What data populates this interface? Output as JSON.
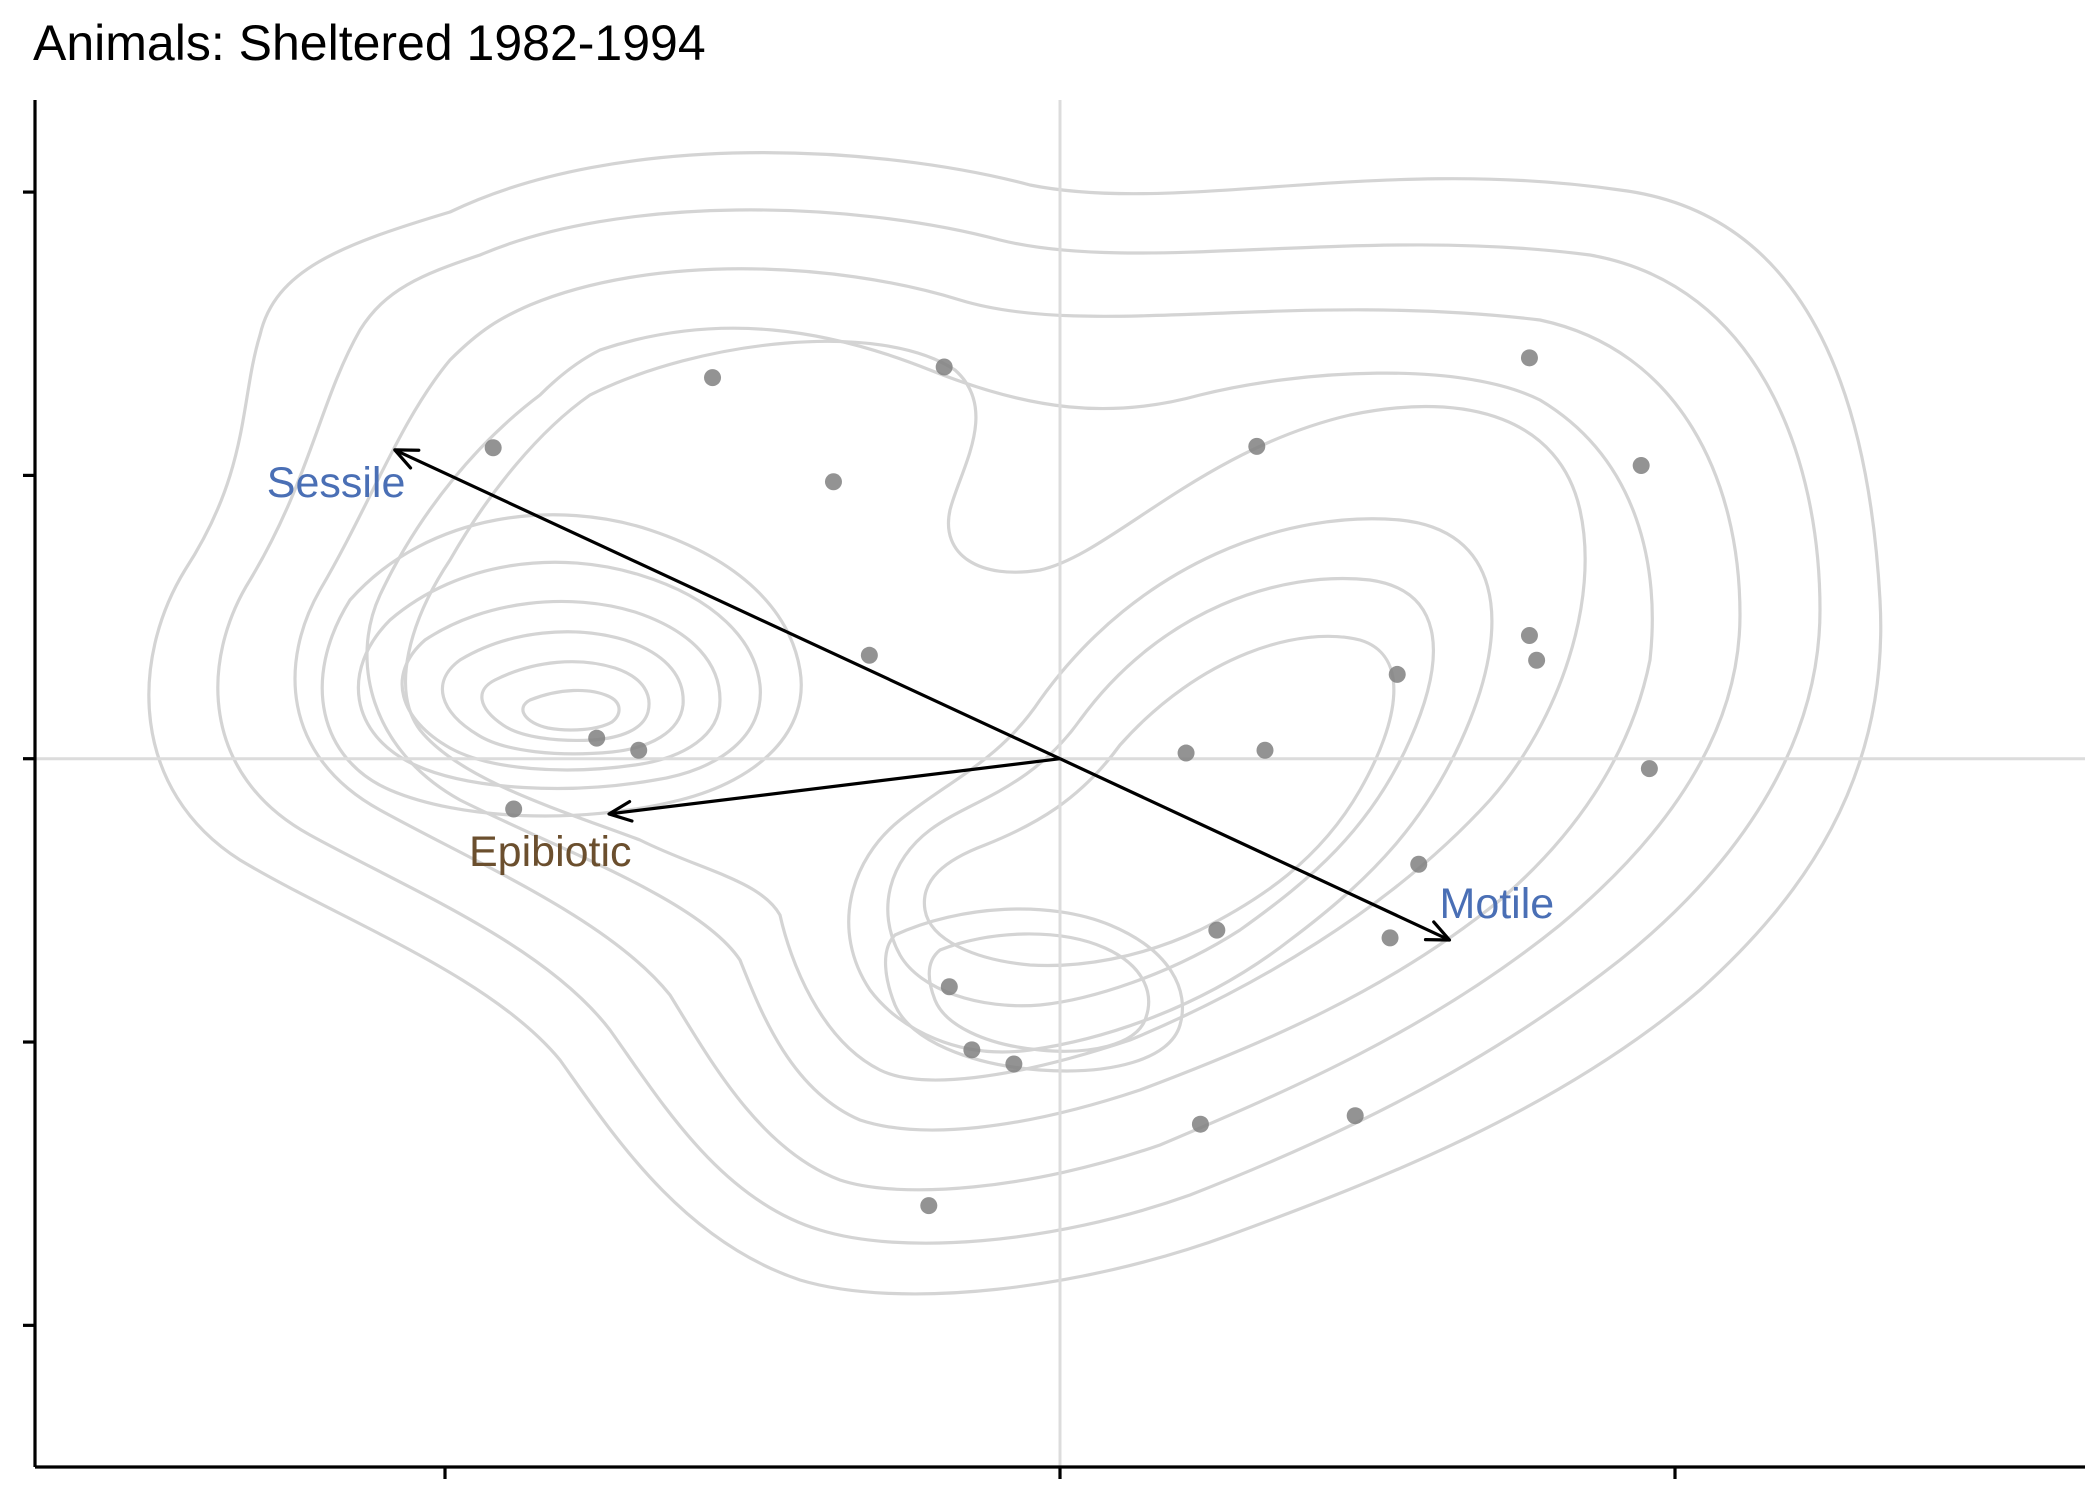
{
  "chart_data": {
    "type": "scatter",
    "title": "Animals: Sheltered 1982-1994",
    "xlabel": "",
    "ylabel": "",
    "xlim": [
      -1.0,
      1.0
    ],
    "ylim": [
      -1.0,
      0.93
    ],
    "x_ticks": [
      -0.6,
      0.0,
      0.6
    ],
    "y_ticks": [
      -0.8,
      -0.4,
      0.0,
      0.4,
      0.8
    ],
    "tick_labels_shown": false,
    "reference_lines": {
      "x": 0,
      "y": 0
    },
    "density_contours": true,
    "grid": false,
    "colors": {
      "points": "#808080",
      "contours": "#d4d4d4",
      "reference_lines": "#dcdcdc",
      "vectors": "#000000",
      "label_blue": "#4a6fb5",
      "label_brown": "#6b4f2e"
    },
    "points": [
      {
        "x": -0.553,
        "y": 0.439
      },
      {
        "x": -0.339,
        "y": 0.538
      },
      {
        "x": -0.113,
        "y": 0.553
      },
      {
        "x": -0.221,
        "y": 0.391
      },
      {
        "x": -0.186,
        "y": 0.146
      },
      {
        "x": -0.452,
        "y": 0.029
      },
      {
        "x": -0.411,
        "y": 0.012
      },
      {
        "x": -0.533,
        "y": -0.071
      },
      {
        "x": 0.192,
        "y": 0.441
      },
      {
        "x": 0.458,
        "y": 0.566
      },
      {
        "x": 0.567,
        "y": 0.414
      },
      {
        "x": 0.458,
        "y": 0.174
      },
      {
        "x": 0.465,
        "y": 0.139
      },
      {
        "x": 0.329,
        "y": 0.119
      },
      {
        "x": 0.123,
        "y": 0.008
      },
      {
        "x": 0.2,
        "y": 0.012
      },
      {
        "x": 0.575,
        "y": -0.014
      },
      {
        "x": 0.35,
        "y": -0.149
      },
      {
        "x": 0.153,
        "y": -0.242
      },
      {
        "x": 0.322,
        "y": -0.253
      },
      {
        "x": -0.108,
        "y": -0.322
      },
      {
        "x": -0.086,
        "y": -0.411
      },
      {
        "x": -0.045,
        "y": -0.431
      },
      {
        "x": 0.137,
        "y": -0.516
      },
      {
        "x": 0.288,
        "y": -0.504
      },
      {
        "x": -0.128,
        "y": -0.631
      }
    ],
    "vectors": [
      {
        "name": "Sessile",
        "x": -0.649,
        "y": 0.436,
        "color": "#4a6fb5"
      },
      {
        "name": "Motile",
        "x": 0.38,
        "y": -0.256,
        "color": "#4a6fb5"
      },
      {
        "name": "Epibiotic",
        "x": -0.44,
        "y": -0.078,
        "color": "#6b4f2e"
      }
    ]
  }
}
